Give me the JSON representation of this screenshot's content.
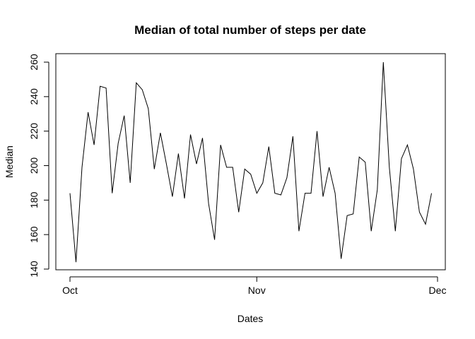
{
  "chart_data": {
    "type": "line",
    "title": "Median of total number of steps per date",
    "xlabel": "Dates",
    "ylabel": "Median",
    "x_start": "2012-10-01",
    "x_end": "2012-11-30",
    "x_ticks": [
      {
        "date": "2012-10-01",
        "label": "Oct"
      },
      {
        "date": "2012-11-01",
        "label": "Nov"
      },
      {
        "date": "2012-12-01",
        "label": "Dec"
      }
    ],
    "y_ticks": [
      140,
      160,
      180,
      200,
      220,
      240,
      260
    ],
    "ylim": [
      140,
      262
    ],
    "grid": false,
    "series": [
      {
        "values": [
          184,
          144,
          199,
          231,
          212,
          246,
          245,
          184,
          213,
          229,
          190,
          248,
          244,
          233,
          198,
          219,
          201,
          182,
          207,
          181,
          218,
          201,
          216,
          178,
          157,
          212,
          199,
          199,
          173,
          198,
          195,
          184,
          190,
          211,
          184,
          183,
          193,
          217,
          162,
          184,
          184,
          220,
          182,
          199,
          184,
          146,
          171,
          172,
          205,
          202,
          162,
          186,
          260,
          199,
          162,
          204,
          212,
          198,
          173,
          166,
          184
        ]
      }
    ]
  }
}
